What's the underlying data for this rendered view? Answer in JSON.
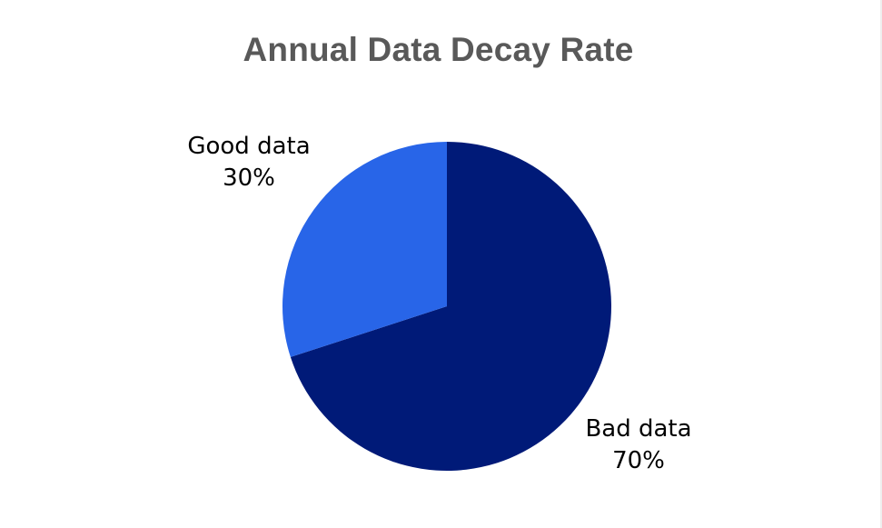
{
  "chart_data": {
    "type": "pie",
    "title": "Annual Data Decay Rate",
    "slices": [
      {
        "label": "Bad data",
        "value": 70,
        "value_label": "70%",
        "color": "#001a78"
      },
      {
        "label": "Good data",
        "value": 30,
        "value_label": "30%",
        "color": "#2865e8"
      }
    ],
    "start_angle": "12 o'clock",
    "direction": "clockwise",
    "legend": "none"
  }
}
